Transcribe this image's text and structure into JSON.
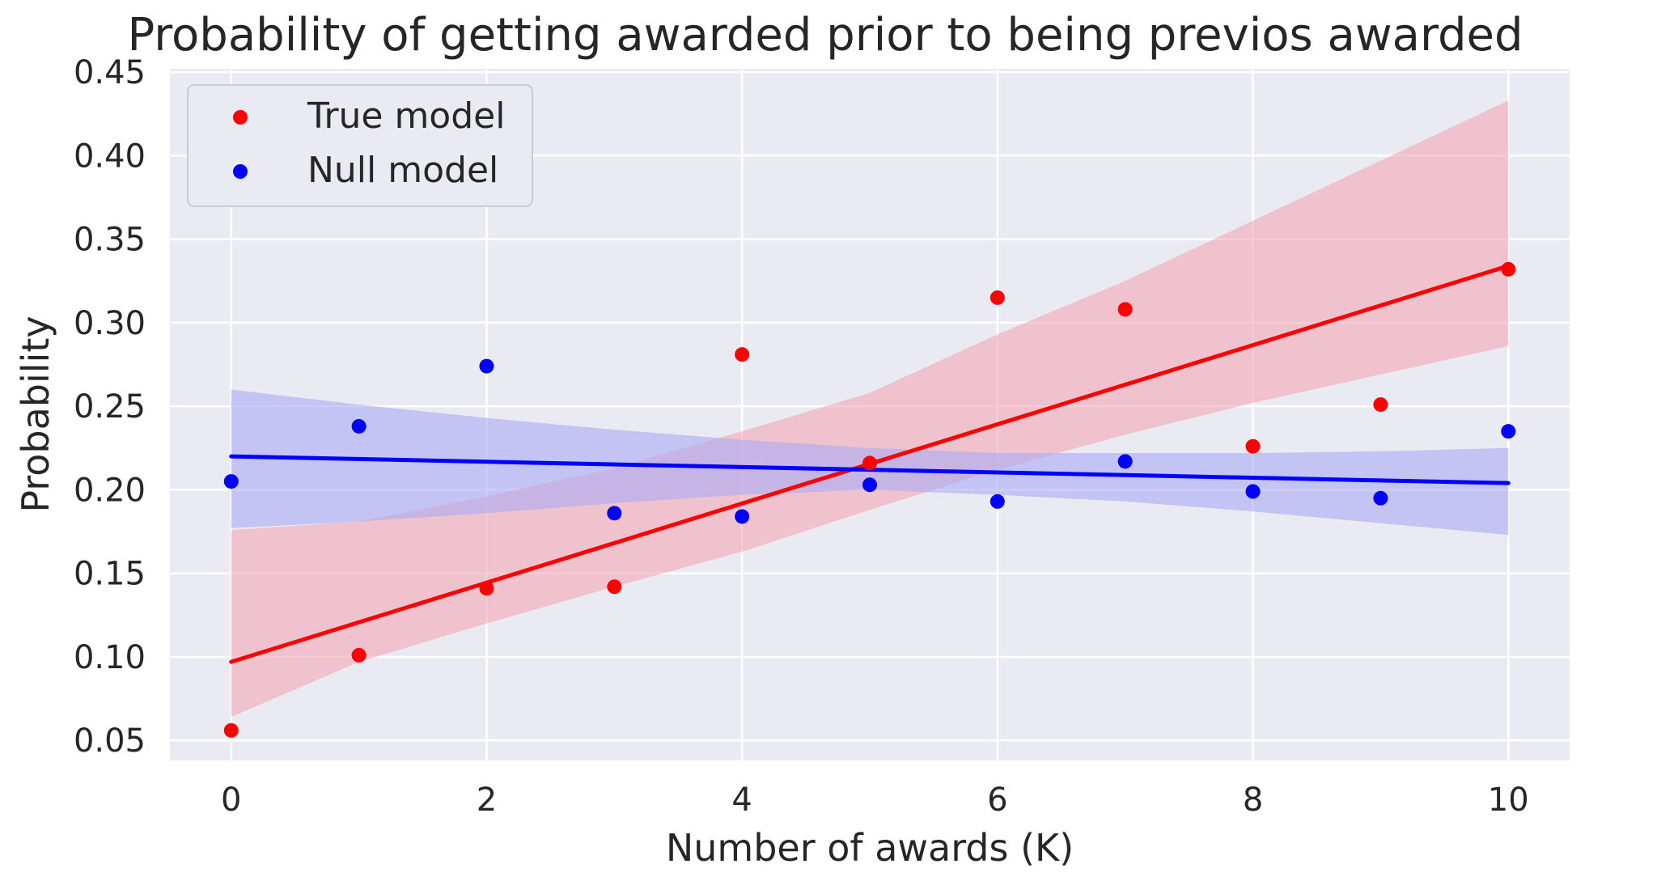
{
  "chart_data": {
    "type": "scatter",
    "title": "Probability of getting awarded prior to being previos awarded",
    "xlabel": "Number of awards (K)",
    "ylabel": "Probability",
    "xlim": [
      -0.48,
      10.48
    ],
    "ylim": [
      0.038,
      0.452
    ],
    "xticks": [
      0,
      2,
      4,
      6,
      8,
      10
    ],
    "xtick_labels": [
      "0",
      "2",
      "4",
      "6",
      "8",
      "10"
    ],
    "yticks": [
      0.05,
      0.1,
      0.15,
      0.2,
      0.25,
      0.3,
      0.35,
      0.4,
      0.45
    ],
    "ytick_labels": [
      "0.05",
      "0.10",
      "0.15",
      "0.20",
      "0.25",
      "0.30",
      "0.35",
      "0.40",
      "0.45"
    ],
    "grid": true,
    "legend_position": "top-left",
    "background_color": "#EAEAF2",
    "grid_color": "#FFFFFF",
    "series": [
      {
        "name": "True model",
        "color": "#FF0000",
        "band_color": "#F4A6B4",
        "x": [
          0,
          1,
          2,
          3,
          4,
          5,
          6,
          7,
          8,
          9,
          10
        ],
        "y": [
          0.056,
          0.101,
          0.141,
          0.142,
          0.281,
          0.216,
          0.315,
          0.308,
          0.226,
          0.251,
          0.332
        ],
        "fit": {
          "x0": 0,
          "y0": 0.097,
          "x1": 10,
          "y1": 0.334
        },
        "ci_upper": [
          [
            0,
            0.176
          ],
          [
            1,
            0.181
          ],
          [
            2,
            0.196
          ],
          [
            3,
            0.213
          ],
          [
            4,
            0.235
          ],
          [
            5,
            0.258
          ],
          [
            6,
            0.293
          ],
          [
            7,
            0.325
          ],
          [
            8,
            0.361
          ],
          [
            9,
            0.397
          ],
          [
            10,
            0.433
          ]
        ],
        "ci_lower": [
          [
            0,
            0.064
          ],
          [
            1,
            0.097
          ],
          [
            2,
            0.12
          ],
          [
            3,
            0.142
          ],
          [
            4,
            0.163
          ],
          [
            5,
            0.188
          ],
          [
            6,
            0.212
          ],
          [
            7,
            0.233
          ],
          [
            8,
            0.252
          ],
          [
            9,
            0.269
          ],
          [
            10,
            0.286
          ]
        ]
      },
      {
        "name": "Null model",
        "color": "#0000FF",
        "band_color": "#AAAAF5",
        "x": [
          0,
          1,
          2,
          3,
          4,
          5,
          6,
          7,
          8,
          9,
          10
        ],
        "y": [
          0.205,
          0.238,
          0.274,
          0.186,
          0.184,
          0.203,
          0.193,
          0.217,
          0.199,
          0.195,
          0.235
        ],
        "fit": {
          "x0": 0,
          "y0": 0.22,
          "x1": 10,
          "y1": 0.204
        },
        "ci_upper": [
          [
            0,
            0.26
          ],
          [
            1,
            0.251
          ],
          [
            2,
            0.243
          ],
          [
            3,
            0.236
          ],
          [
            4,
            0.23
          ],
          [
            5,
            0.225
          ],
          [
            6,
            0.222
          ],
          [
            7,
            0.222
          ],
          [
            8,
            0.222
          ],
          [
            9,
            0.223
          ],
          [
            10,
            0.225
          ]
        ],
        "ci_lower": [
          [
            0,
            0.177
          ],
          [
            1,
            0.181
          ],
          [
            2,
            0.186
          ],
          [
            3,
            0.192
          ],
          [
            4,
            0.197
          ],
          [
            5,
            0.2
          ],
          [
            6,
            0.197
          ],
          [
            7,
            0.193
          ],
          [
            8,
            0.187
          ],
          [
            9,
            0.18
          ],
          [
            10,
            0.173
          ]
        ]
      }
    ]
  }
}
